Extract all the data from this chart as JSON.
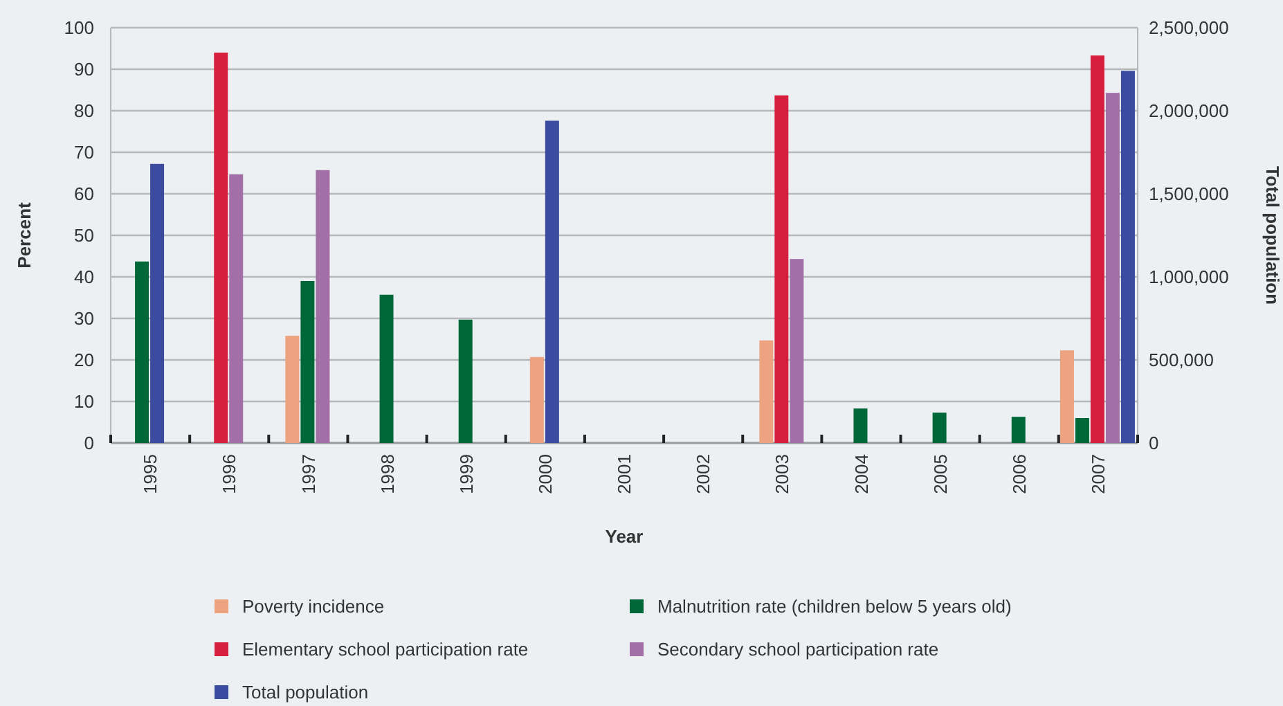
{
  "chart_data": {
    "type": "bar",
    "xlabel": "Year",
    "ylabel": "Percent",
    "y2label": "Total population",
    "categories": [
      "1995",
      "1996",
      "1997",
      "1998",
      "1999",
      "2000",
      "2001",
      "2002",
      "2003",
      "2004",
      "2005",
      "2006",
      "2007"
    ],
    "series": [
      {
        "name": "Poverty incidence",
        "color": "#eda280",
        "values": [
          null,
          null,
          25.8,
          null,
          null,
          20.7,
          null,
          null,
          24.7,
          null,
          null,
          null,
          22.3
        ]
      },
      {
        "name": "Malnutrition rate (children below 5 years old)",
        "color": "#006838",
        "values": [
          43.7,
          null,
          39.0,
          35.7,
          29.7,
          null,
          null,
          null,
          null,
          8.3,
          7.3,
          6.3,
          6.0
        ]
      },
      {
        "name": "Elementary school participation rate",
        "color": "#d81e3e",
        "values": [
          null,
          94.0,
          null,
          null,
          null,
          null,
          null,
          null,
          83.7,
          null,
          null,
          null,
          93.3
        ]
      },
      {
        "name": "Secondary school participation rate",
        "color": "#a26fa6",
        "values": [
          null,
          64.7,
          65.7,
          null,
          null,
          null,
          null,
          null,
          44.3,
          null,
          null,
          null,
          84.3
        ]
      },
      {
        "name": "Total population",
        "color": "#3b4ba0",
        "axis": "y2",
        "values": [
          1680000,
          null,
          null,
          null,
          null,
          1940000,
          null,
          null,
          null,
          null,
          null,
          null,
          2240000
        ]
      }
    ],
    "ylim": [
      0,
      100
    ],
    "yticks": [
      0,
      10,
      20,
      30,
      40,
      50,
      60,
      70,
      80,
      90,
      100
    ],
    "y2lim": [
      0,
      2500000
    ],
    "y2ticks": [
      {
        "value": 0,
        "label": "0"
      },
      {
        "value": 500000,
        "label": "500,000"
      },
      {
        "value": 1000000,
        "label": "1,000,000"
      },
      {
        "value": 1500000,
        "label": "1,500,000"
      },
      {
        "value": 2000000,
        "label": "2,000,000"
      },
      {
        "value": 2500000,
        "label": "2,500,000"
      }
    ],
    "grid": "y",
    "legend": "bottom"
  }
}
